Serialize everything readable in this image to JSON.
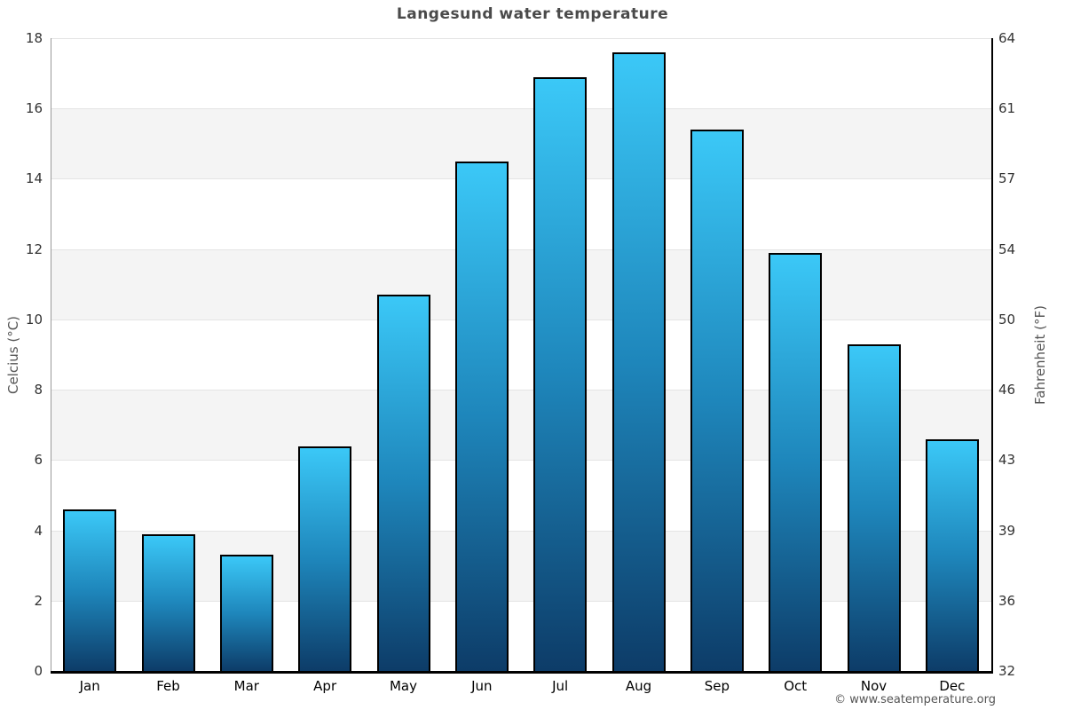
{
  "footer": "© www.seatemperature.org",
  "chart_data": {
    "type": "bar",
    "title": "Langesund water temperature",
    "categories": [
      "Jan",
      "Feb",
      "Mar",
      "Apr",
      "May",
      "Jun",
      "Jul",
      "Aug",
      "Sep",
      "Oct",
      "Nov",
      "Dec"
    ],
    "values": [
      4.6,
      3.9,
      3.3,
      6.4,
      10.7,
      14.5,
      16.9,
      17.6,
      15.4,
      11.9,
      9.3,
      6.6
    ],
    "xlabel": "",
    "ylabel_left": "Celcius (°C)",
    "ylabel_right": "Fahrenheit (°F)",
    "ylim": [
      0,
      18
    ],
    "celsius_ticks": [
      0,
      2,
      4,
      6,
      8,
      10,
      12,
      14,
      16,
      18
    ],
    "fahrenheit_ticks": [
      32,
      36,
      39,
      43,
      46,
      50,
      54,
      57,
      61,
      64
    ],
    "legend": "none",
    "grid": "alternating horizontal bands every 2°C"
  },
  "colors": {
    "bar_top": "#3bc8f7",
    "bar_mid": "#1e86bb",
    "bar_bottom": "#0d3c68",
    "bar_border": "#000000",
    "band": "#f4f4f4",
    "gridline": "#e4e4e4",
    "axis_left": "#999999",
    "axis_right": "#000000",
    "axis_bottom": "#000000",
    "title_text": "#4a4a4a",
    "tick_text": "#333333",
    "month_text": "#000000",
    "axis_title_text": "#555555",
    "footer_text": "#555555",
    "background": "#ffffff"
  }
}
